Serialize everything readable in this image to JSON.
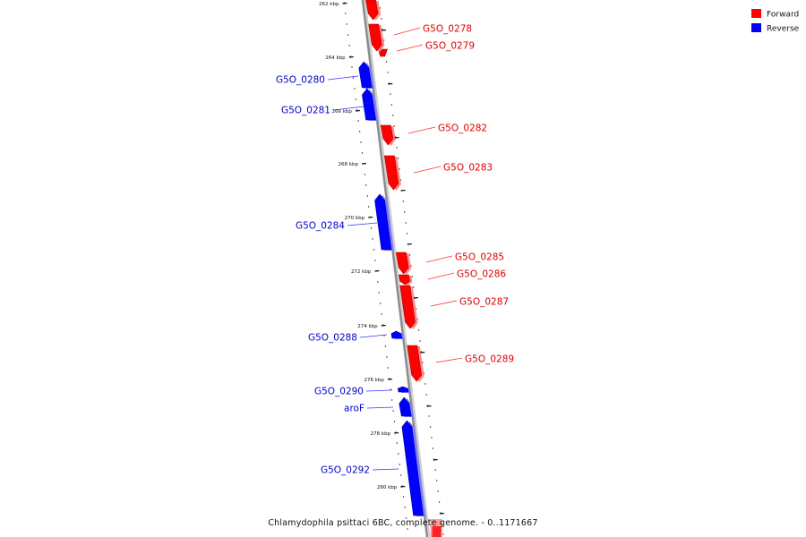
{
  "caption": "Chlamydophila psittaci 6BC, complete genome. - 0..1171667",
  "legend": [
    {
      "label": "Forward",
      "color": "#ff0000"
    },
    {
      "label": "Reverse",
      "color": "#0000ff"
    }
  ],
  "colors": {
    "forward": "#ff0000",
    "reverse": "#0000ff",
    "backbone": "#888888"
  },
  "ticks": [
    "262 kbp",
    "264 kbp",
    "266 kbp",
    "268 kbp",
    "270 kbp",
    "272 kbp",
    "274 kbp",
    "276 kbp",
    "278 kbp",
    "280 kbp"
  ],
  "genes": [
    {
      "label": "G5O_0278",
      "strand": "forward"
    },
    {
      "label": "G5O_0279",
      "strand": "forward"
    },
    {
      "label": "G5O_0280",
      "strand": "reverse"
    },
    {
      "label": "G5O_0281",
      "strand": "reverse"
    },
    {
      "label": "G5O_0282",
      "strand": "forward"
    },
    {
      "label": "G5O_0283",
      "strand": "forward"
    },
    {
      "label": "G5O_0284",
      "strand": "reverse"
    },
    {
      "label": "G5O_0285",
      "strand": "forward"
    },
    {
      "label": "G5O_0286",
      "strand": "forward"
    },
    {
      "label": "G5O_0287",
      "strand": "forward"
    },
    {
      "label": "G5O_0288",
      "strand": "reverse"
    },
    {
      "label": "G5O_0289",
      "strand": "forward"
    },
    {
      "label": "G5O_0290",
      "strand": "reverse"
    },
    {
      "label": "aroF",
      "strand": "reverse"
    },
    {
      "label": "G5O_0292",
      "strand": "reverse"
    }
  ]
}
